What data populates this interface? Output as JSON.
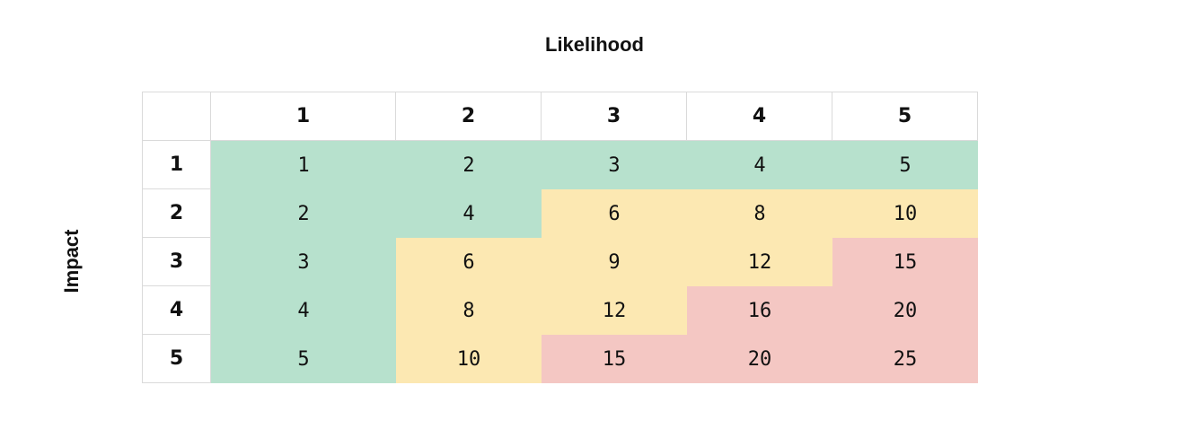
{
  "title_top": "Likelihood",
  "title_side": "Impact",
  "column_headers": [
    "1",
    "2",
    "3",
    "4",
    "5"
  ],
  "row_headers": [
    "1",
    "2",
    "3",
    "4",
    "5"
  ],
  "colors": {
    "low": "#b7e1cd",
    "medium": "#fce8b2",
    "high": "#f4c7c3",
    "border": "#dadada"
  },
  "rows": [
    [
      "1",
      "2",
      "3",
      "4",
      "5"
    ],
    [
      "2",
      "4",
      "6",
      "8",
      "10"
    ],
    [
      "3",
      "6",
      "9",
      "12",
      "15"
    ],
    [
      "4",
      "8",
      "12",
      "16",
      "20"
    ],
    [
      "5",
      "10",
      "15",
      "20",
      "25"
    ]
  ]
}
